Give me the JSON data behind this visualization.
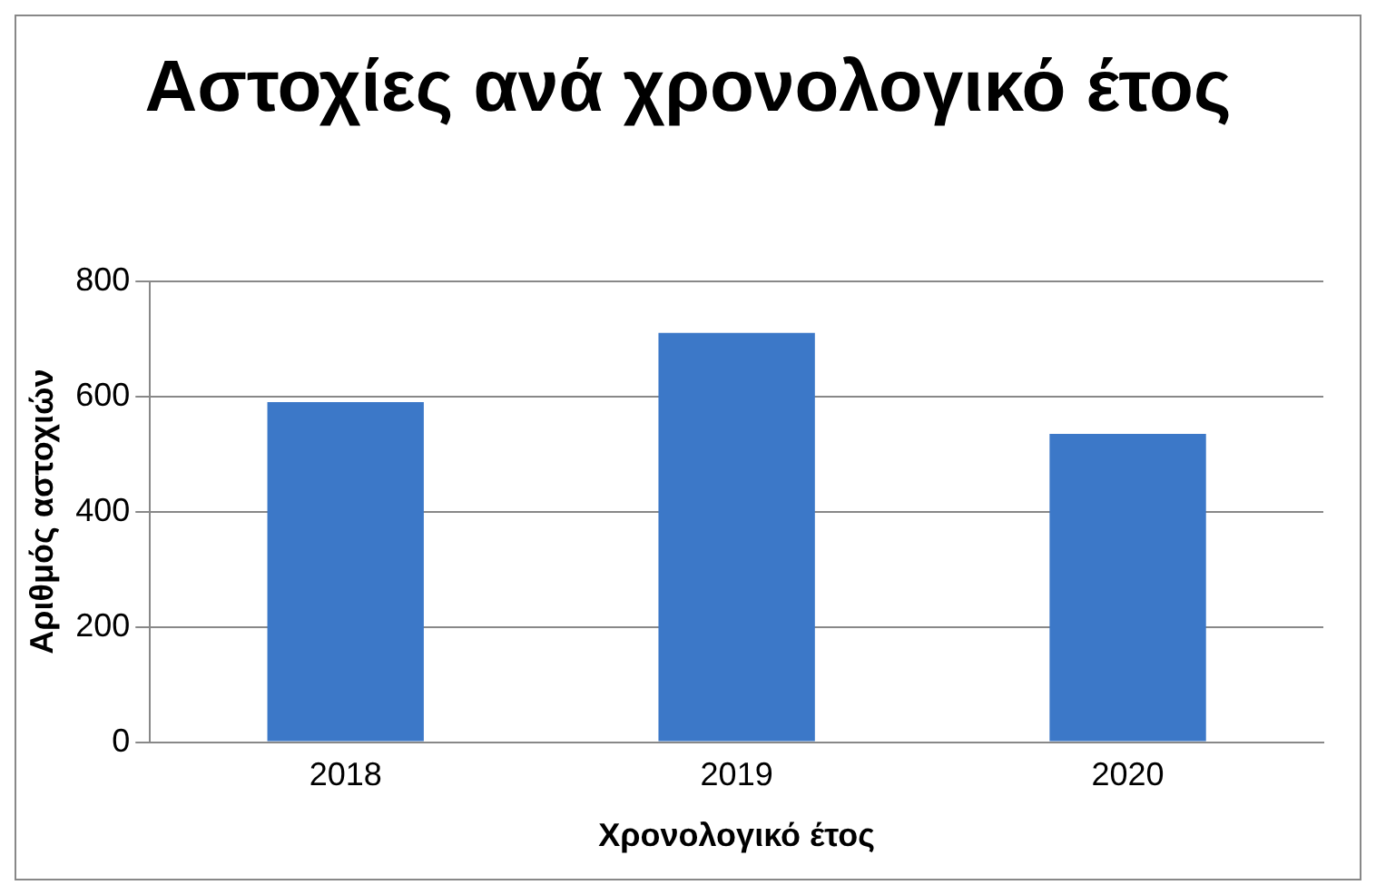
{
  "chart_data": {
    "type": "bar",
    "title": "Αστοχίες ανά χρονολογικό έτος",
    "xlabel": "Χρονολογικό έτος",
    "ylabel": "Αριθμός αστοχιών",
    "categories": [
      "2018",
      "2019",
      "2020"
    ],
    "values": [
      590,
      710,
      535
    ],
    "color": "#3c78c8",
    "ylim": [
      0,
      800
    ],
    "yticks": [
      0,
      200,
      400,
      600,
      800
    ],
    "grid": "y",
    "legend": false
  }
}
